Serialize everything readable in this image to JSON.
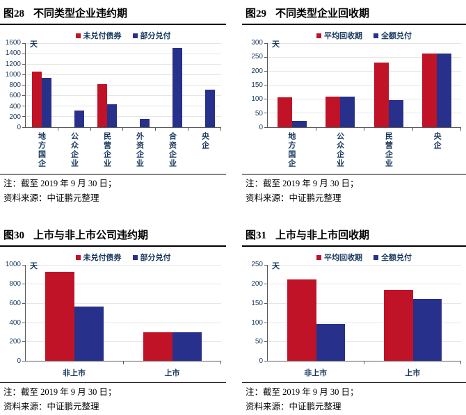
{
  "colors": {
    "bar_red": "#c01328",
    "bar_blue": "#27308a",
    "axis_text": "#17375e"
  },
  "figures": [
    {
      "label": "图28",
      "title": "不同类型企业违约期",
      "note1": "注：截至 2019 年 9 月 30 日；",
      "note2": "资料来源：中证鹏元整理"
    },
    {
      "label": "图29",
      "title": "不同类型企业回收期",
      "note1": "注：截至 2019 年 9 月 30 日；",
      "note2": "资料来源：中证鹏元整理"
    },
    {
      "label": "图30",
      "title": "上市与非上市公司违约期",
      "note1": "注：截至 2019 年 9 月 30 日；",
      "note2": "资料来源：中证鹏元整理"
    },
    {
      "label": "图31",
      "title": "上市与非上市回收期",
      "note1": "注：截至 2019 年 9 月 30 日；",
      "note2": "资料来源：中证鹏元整理"
    }
  ],
  "chart_data": [
    {
      "type": "bar",
      "title": "图28 不同类型企业违约期",
      "ylabel": "天",
      "categories": [
        "地方国企",
        "公众企业",
        "民营企业",
        "外资企业",
        "合资企业",
        "央企"
      ],
      "series": [
        {
          "name": "未兑付债券",
          "color": "#c01328",
          "values": [
            1060,
            0,
            820,
            0,
            0,
            0
          ]
        },
        {
          "name": "部分兑付",
          "color": "#27308a",
          "values": [
            940,
            320,
            440,
            160,
            1510,
            720
          ]
        }
      ],
      "ylim": [
        0,
        1600
      ],
      "ytick_step": 200,
      "xlabel_orientation": "vertical",
      "legend_position": "top",
      "grid": true
    },
    {
      "type": "bar",
      "title": "图29 不同类型企业回收期",
      "ylabel": "天",
      "categories": [
        "地方国企",
        "公众企业",
        "民营企业",
        "央企"
      ],
      "series": [
        {
          "name": "平均回收期",
          "color": "#c01328",
          "values": [
            107,
            108,
            230,
            262
          ]
        },
        {
          "name": "全额兑付",
          "color": "#27308a",
          "values": [
            23,
            108,
            97,
            262
          ]
        }
      ],
      "ylim": [
        0,
        300
      ],
      "ytick_step": 50,
      "xlabel_orientation": "vertical",
      "legend_position": "top",
      "grid": true
    },
    {
      "type": "bar",
      "title": "图30 上市与非上市公司违约期",
      "ylabel": "天",
      "categories": [
        "非上市",
        "上市"
      ],
      "series": [
        {
          "name": "未兑付债券",
          "color": "#c01328",
          "values": [
            930,
            300
          ]
        },
        {
          "name": "部分兑付",
          "color": "#27308a",
          "values": [
            570,
            300
          ]
        }
      ],
      "ylim": [
        0,
        1000
      ],
      "ytick_step": 200,
      "xlabel_orientation": "horizontal",
      "legend_position": "top",
      "grid": true
    },
    {
      "type": "bar",
      "title": "图31 上市与非上市回收期",
      "ylabel": "天",
      "categories": [
        "非上市",
        "上市"
      ],
      "series": [
        {
          "name": "平均回收期",
          "color": "#c01328",
          "values": [
            213,
            185
          ]
        },
        {
          "name": "全额兑付",
          "color": "#27308a",
          "values": [
            96,
            162
          ]
        }
      ],
      "ylim": [
        0,
        250
      ],
      "ytick_step": 50,
      "xlabel_orientation": "horizontal",
      "legend_position": "top",
      "grid": true
    }
  ]
}
